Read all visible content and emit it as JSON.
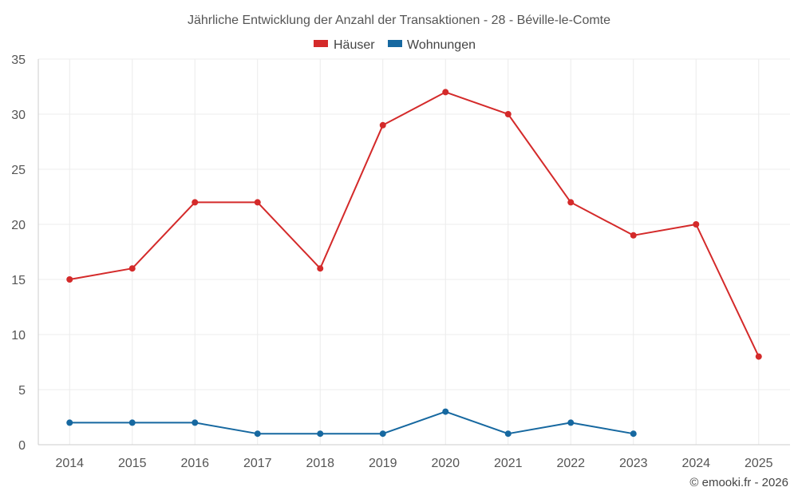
{
  "chart_data": {
    "type": "line",
    "title": "Jährliche Entwicklung der Anzahl der Transaktionen - 28 - Béville-le-Comte",
    "categories": [
      "2014",
      "2015",
      "2016",
      "2017",
      "2018",
      "2019",
      "2020",
      "2021",
      "2022",
      "2023",
      "2024",
      "2025"
    ],
    "series": [
      {
        "name": "Häuser",
        "color": "#d42a2a",
        "values": [
          15,
          16,
          22,
          22,
          16,
          29,
          32,
          30,
          22,
          19,
          20,
          8
        ]
      },
      {
        "name": "Wohnungen",
        "color": "#1668a0",
        "values": [
          2,
          2,
          2,
          1,
          1,
          1,
          3,
          1,
          2,
          1,
          null,
          null
        ]
      }
    ],
    "ylim": [
      0,
      35
    ],
    "yticks": [
      0,
      5,
      10,
      15,
      20,
      25,
      30,
      35
    ],
    "grid": true,
    "legend": "top-center"
  },
  "credit": "© emooki.fr - 2026"
}
